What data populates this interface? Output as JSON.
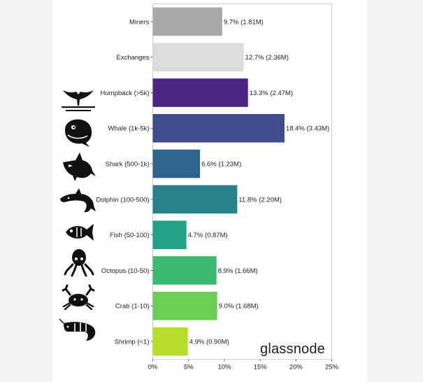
{
  "brand": {
    "name": "glassnode"
  },
  "colors": {
    "frame": "#cfcfcf",
    "tick": "#444444",
    "icon": "#111111"
  },
  "icons": [
    "whale-tail-icon",
    "whale-icon",
    "shark-icon",
    "dolphin-icon",
    "fish-icon",
    "octopus-icon",
    "crab-icon",
    "shrimp-icon"
  ],
  "chart_data": {
    "type": "bar",
    "orientation": "horizontal",
    "categories": [
      "Miners",
      "Exchanges",
      "Humpback (>5k)",
      "Whale (1k-5k)",
      "Shark (500-1k)",
      "Dolphin (100-500)",
      "Fish (50-100)",
      "Octopus (10-50)",
      "Crab (1-10)",
      "Shrimp (<1)"
    ],
    "values": [
      9.7,
      12.7,
      13.3,
      18.4,
      6.6,
      11.8,
      4.7,
      8.9,
      9.0,
      4.9
    ],
    "value_labels": [
      "9.7% (1.81M)",
      "12.7% (2.36M)",
      "13.3% (2.47M)",
      "18.4% (3.43M)",
      "6.6% (1.23M)",
      "11.8% (2.20M)",
      "4.7% (0.87M)",
      "8.9% (1.66M)",
      "9.0% (1.68M)",
      "4.9% (0.90M)"
    ],
    "colors": [
      "#a9a9a9",
      "#dcdcdc",
      "#4b2683",
      "#3f4d8f",
      "#31648c",
      "#27828e",
      "#22a287",
      "#3aba72",
      "#6ccf55",
      "#b5de2b"
    ],
    "xlim": [
      0,
      25
    ],
    "xticks": [
      0,
      5,
      10,
      15,
      20,
      25
    ],
    "xtick_labels": [
      "0%",
      "5%",
      "10%",
      "15%",
      "20%",
      "25%"
    ],
    "title": "",
    "xlabel": "",
    "ylabel": "",
    "grid": false
  }
}
